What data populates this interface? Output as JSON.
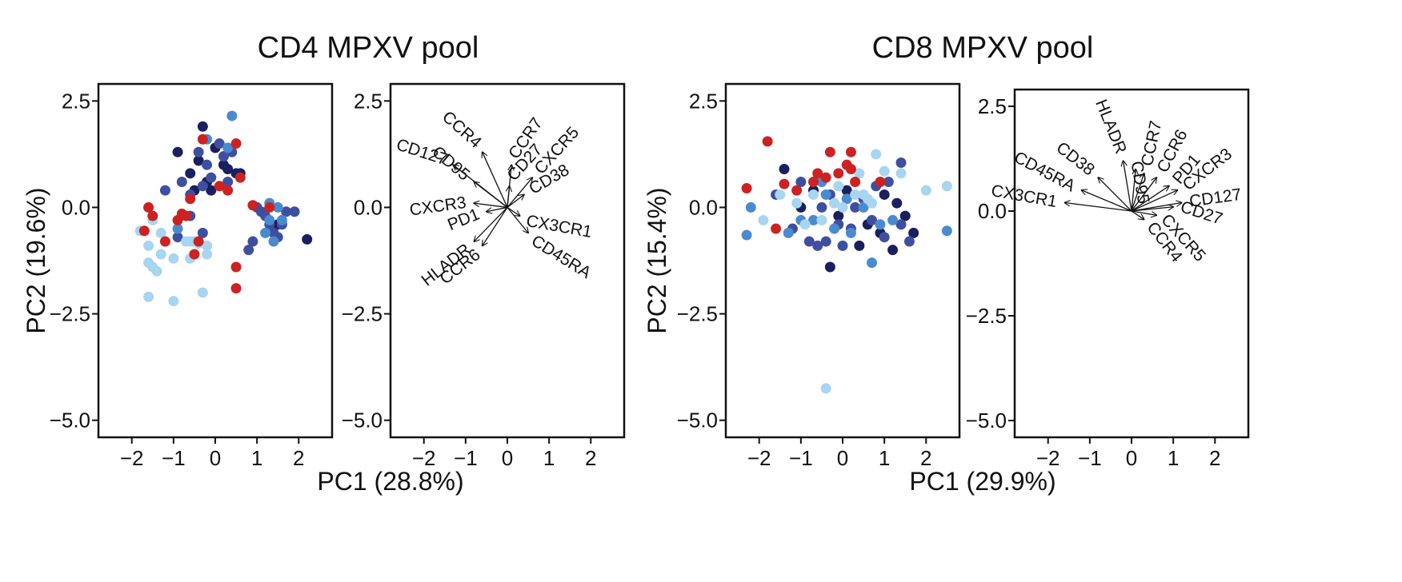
{
  "chart_data": [
    {
      "type": "scatter",
      "title": "CD4 MPXV pool",
      "xlabel": "PC1 (28.8%)",
      "ylabel": "PC2 (19.6%)",
      "xlim": [
        -2.8,
        2.8
      ],
      "ylim": [
        -5.4,
        2.9
      ],
      "xticks": [
        -2,
        -1,
        0,
        1,
        2
      ],
      "yticks": [
        2.5,
        0.0,
        -2.5,
        -5.0
      ],
      "grid": false,
      "series": [
        {
          "color": "#1a1f5e",
          "points": [
            [
              -0.9,
              1.3
            ],
            [
              -0.6,
              0.8
            ],
            [
              -0.3,
              1.9
            ],
            [
              -0.2,
              0.6
            ],
            [
              0.0,
              1.4
            ],
            [
              0.2,
              1.0
            ],
            [
              0.5,
              0.8
            ],
            [
              0.6,
              0.8
            ],
            [
              -0.5,
              0.4
            ],
            [
              -0.1,
              0.4
            ],
            [
              1.5,
              -0.4
            ],
            [
              2.2,
              -0.75
            ],
            [
              -0.4,
              1.1
            ],
            [
              0.3,
              0.9
            ]
          ]
        },
        {
          "color": "#3f4fa0",
          "points": [
            [
              -1.2,
              0.4
            ],
            [
              -0.8,
              0.6
            ],
            [
              -0.6,
              0.3
            ],
            [
              -0.4,
              1.3
            ],
            [
              -0.3,
              0.5
            ],
            [
              -0.2,
              1.0
            ],
            [
              -0.1,
              0.7
            ],
            [
              0.1,
              1.5
            ],
            [
              0.3,
              0.6
            ],
            [
              0.4,
              1.3
            ],
            [
              1.0,
              0.0
            ],
            [
              1.2,
              -0.2
            ],
            [
              1.3,
              -0.4
            ],
            [
              1.4,
              -0.6
            ],
            [
              1.6,
              -0.4
            ],
            [
              1.7,
              -0.1
            ],
            [
              1.9,
              -0.1
            ],
            [
              0.8,
              -1.0
            ],
            [
              -0.9,
              -0.7
            ],
            [
              -0.6,
              -0.2
            ],
            [
              1.1,
              -0.1
            ],
            [
              1.5,
              -0.7
            ],
            [
              -0.3,
              -0.6
            ],
            [
              0.9,
              -0.8
            ],
            [
              0.2,
              1.2
            ]
          ]
        },
        {
          "color": "#4a8bd0",
          "points": [
            [
              0.4,
              2.15
            ],
            [
              1.3,
              -0.3
            ],
            [
              1.5,
              0.0
            ],
            [
              1.2,
              -0.6
            ],
            [
              1.4,
              -0.8
            ],
            [
              -0.9,
              -0.5
            ],
            [
              -0.2,
              1.6
            ],
            [
              0.3,
              1.4
            ],
            [
              1.6,
              -0.3
            ],
            [
              1.3,
              0.1
            ]
          ]
        },
        {
          "color": "#a8d5f0",
          "points": [
            [
              -1.8,
              -0.55
            ],
            [
              -1.6,
              -0.9
            ],
            [
              -1.5,
              -1.4
            ],
            [
              -1.6,
              -1.3
            ],
            [
              -1.5,
              -0.3
            ],
            [
              -1.3,
              -0.6
            ],
            [
              -1.0,
              -1.2
            ],
            [
              -0.7,
              -0.8
            ],
            [
              -0.6,
              -0.8
            ],
            [
              -0.5,
              -0.8
            ],
            [
              -0.4,
              -0.85
            ],
            [
              -0.2,
              -1.1
            ],
            [
              -0.2,
              -0.9
            ],
            [
              -1.0,
              -2.2
            ],
            [
              -1.6,
              -2.1
            ],
            [
              -0.3,
              -2.0
            ],
            [
              -1.4,
              -1.5
            ],
            [
              -0.6,
              -1.2
            ],
            [
              -1.3,
              -1.1
            ]
          ]
        },
        {
          "color": "#cc2222",
          "points": [
            [
              -1.6,
              0.0
            ],
            [
              -1.5,
              -0.2
            ],
            [
              -1.7,
              -0.55
            ],
            [
              -1.2,
              -0.8
            ],
            [
              -0.9,
              -0.3
            ],
            [
              -0.8,
              -0.15
            ],
            [
              -0.7,
              -0.2
            ],
            [
              -0.6,
              0.2
            ],
            [
              -0.3,
              1.6
            ],
            [
              0.1,
              0.5
            ],
            [
              0.3,
              0.4
            ],
            [
              0.5,
              1.5
            ],
            [
              0.9,
              0.05
            ],
            [
              1.3,
              0.0
            ],
            [
              0.5,
              -1.4
            ],
            [
              0.5,
              -1.9
            ],
            [
              -0.4,
              -0.8
            ],
            [
              0.6,
              0.7
            ],
            [
              -0.5,
              -1.1
            ]
          ]
        }
      ]
    },
    {
      "type": "biplot",
      "xlim": [
        -2.8,
        2.8
      ],
      "ylim": [
        -5.4,
        2.9
      ],
      "xticks": [
        -2,
        -1,
        0,
        1,
        2
      ],
      "yticks": [
        2.5,
        0.0,
        -2.5,
        -5.0
      ],
      "grid": false,
      "vectors": [
        {
          "label": "CD127",
          "x": -1.3,
          "y": 1.0,
          "angle": 18
        },
        {
          "label": "CCR4",
          "x": -0.6,
          "y": 1.3,
          "angle": 42
        },
        {
          "label": "CD95",
          "x": -0.8,
          "y": 0.6,
          "angle": 40
        },
        {
          "label": "CCR7",
          "x": 0.1,
          "y": 1.0,
          "angle": -55
        },
        {
          "label": "CD27",
          "x": 0.05,
          "y": 0.5,
          "angle": -48
        },
        {
          "label": "CXCR5",
          "x": 0.6,
          "y": 0.7,
          "angle": -48
        },
        {
          "label": "CD38",
          "x": 0.4,
          "y": 0.3,
          "angle": -30
        },
        {
          "label": "CXCR3",
          "x": -0.8,
          "y": 0.1,
          "angle": -8
        },
        {
          "label": "PD1",
          "x": -0.5,
          "y": -0.1,
          "angle": -22
        },
        {
          "label": "CX3CR1",
          "x": 0.3,
          "y": -0.2,
          "angle": 10
        },
        {
          "label": "CD45RA",
          "x": 0.5,
          "y": -0.6,
          "angle": 32
        },
        {
          "label": "HLADR",
          "x": -0.8,
          "y": -0.8,
          "angle": -38
        },
        {
          "label": "CCR6",
          "x": -0.6,
          "y": -0.9,
          "angle": -38
        }
      ]
    },
    {
      "type": "scatter",
      "title": "CD8 MPXV pool",
      "xlabel": "PC1 (29.9%)",
      "ylabel": "PC2 (15.4%)",
      "xlim": [
        -2.8,
        2.8
      ],
      "ylim": [
        -5.4,
        2.9
      ],
      "xticks": [
        -2,
        -1,
        0,
        1,
        2
      ],
      "yticks": [
        2.5,
        0.0,
        -2.5,
        -5.0
      ],
      "grid": false,
      "series": [
        {
          "color": "#1a1f5e",
          "points": [
            [
              -1.4,
              0.9
            ],
            [
              -0.7,
              0.4
            ],
            [
              -0.3,
              -1.4
            ],
            [
              0.1,
              0.4
            ],
            [
              0.6,
              -0.4
            ],
            [
              0.9,
              -0.6
            ],
            [
              1.0,
              0.3
            ],
            [
              1.3,
              0.1
            ],
            [
              1.5,
              -0.2
            ],
            [
              -0.1,
              -0.2
            ],
            [
              0.4,
              -0.9
            ],
            [
              1.2,
              -1.0
            ],
            [
              1.7,
              -0.6
            ],
            [
              -1.0,
              0.0
            ]
          ]
        },
        {
          "color": "#3f4fa0",
          "points": [
            [
              -1.6,
              0.3
            ],
            [
              -1.2,
              -0.5
            ],
            [
              -0.8,
              -0.8
            ],
            [
              -0.6,
              -0.9
            ],
            [
              -0.5,
              0.0
            ],
            [
              -0.3,
              0.3
            ],
            [
              -0.1,
              -0.4
            ],
            [
              0.2,
              -0.5
            ],
            [
              0.3,
              0.0
            ],
            [
              0.5,
              0.2
            ],
            [
              0.7,
              -0.3
            ],
            [
              0.8,
              0.5
            ],
            [
              1.1,
              0.6
            ],
            [
              1.4,
              -0.4
            ],
            [
              1.6,
              -0.8
            ],
            [
              -1.0,
              0.6
            ],
            [
              0.0,
              -0.9
            ],
            [
              1.4,
              1.05
            ],
            [
              -0.4,
              -0.8
            ],
            [
              1.0,
              -0.7
            ]
          ]
        },
        {
          "color": "#4a8bd0",
          "points": [
            [
              -2.3,
              -0.65
            ],
            [
              -2.2,
              0.0
            ],
            [
              -1.3,
              -0.6
            ],
            [
              -1.0,
              -0.3
            ],
            [
              -0.7,
              -0.3
            ],
            [
              -0.4,
              0.3
            ],
            [
              -0.2,
              -0.5
            ],
            [
              0.2,
              -0.6
            ],
            [
              0.5,
              0.0
            ],
            [
              0.9,
              -0.4
            ],
            [
              1.2,
              -0.3
            ],
            [
              0.7,
              -1.3
            ],
            [
              2.5,
              -0.55
            ],
            [
              -0.5,
              0.6
            ],
            [
              0.1,
              0.2
            ]
          ]
        },
        {
          "color": "#a8d5f0",
          "points": [
            [
              -1.5,
              0.3
            ],
            [
              -1.1,
              0.1
            ],
            [
              -0.9,
              -0.4
            ],
            [
              -0.7,
              0.3
            ],
            [
              -0.5,
              -0.3
            ],
            [
              -0.1,
              0.5
            ],
            [
              0.0,
              0.0
            ],
            [
              0.3,
              0.3
            ],
            [
              0.4,
              0.8
            ],
            [
              0.6,
              0.2
            ],
            [
              0.7,
              0.1
            ],
            [
              0.8,
              1.25
            ],
            [
              1.0,
              0.85
            ],
            [
              1.4,
              0.8
            ],
            [
              2.0,
              0.4
            ],
            [
              2.5,
              0.5
            ],
            [
              -1.9,
              -0.3
            ],
            [
              -0.4,
              -4.25
            ],
            [
              -0.2,
              0.1
            ],
            [
              0.5,
              0.3
            ]
          ]
        },
        {
          "color": "#cc2222",
          "points": [
            [
              -1.8,
              1.55
            ],
            [
              -2.3,
              0.45
            ],
            [
              -1.4,
              0.55
            ],
            [
              -1.1,
              0.4
            ],
            [
              -0.7,
              0.6
            ],
            [
              -0.6,
              0.8
            ],
            [
              -0.4,
              0.7
            ],
            [
              -0.3,
              1.3
            ],
            [
              -0.1,
              0.8
            ],
            [
              0.1,
              1.0
            ],
            [
              0.2,
              0.9
            ],
            [
              0.3,
              0.6
            ],
            [
              -1.6,
              -0.5
            ],
            [
              0.9,
              0.6
            ],
            [
              0.2,
              1.3
            ]
          ]
        }
      ]
    },
    {
      "type": "biplot",
      "xlim": [
        -2.8,
        2.8
      ],
      "ylim": [
        -5.4,
        2.9
      ],
      "xticks": [
        -2,
        -1,
        0,
        1,
        2
      ],
      "yticks": [
        2.5,
        0.0,
        -2.5,
        -5.0
      ],
      "grid": false,
      "vectors": [
        {
          "label": "HLADR",
          "x": -0.2,
          "y": 1.2,
          "angle": 68
        },
        {
          "label": "CD95",
          "x": 0.1,
          "y": 1.0,
          "angle": 80
        },
        {
          "label": "CCR7",
          "x": 0.3,
          "y": 0.9,
          "angle": -78
        },
        {
          "label": "CCR6",
          "x": 0.6,
          "y": 0.8,
          "angle": -62
        },
        {
          "label": "PD1",
          "x": 0.9,
          "y": 0.6,
          "angle": -50
        },
        {
          "label": "CXCR3",
          "x": 1.1,
          "y": 0.5,
          "angle": -38
        },
        {
          "label": "CD38",
          "x": -0.8,
          "y": 0.8,
          "angle": 38
        },
        {
          "label": "CD45RA",
          "x": -1.2,
          "y": 0.5,
          "angle": 28
        },
        {
          "label": "CX3CR1",
          "x": -1.6,
          "y": 0.2,
          "angle": 10
        },
        {
          "label": "CD127",
          "x": 1.2,
          "y": 0.2,
          "angle": -8
        },
        {
          "label": "CD27",
          "x": 1.0,
          "y": 0.1,
          "angle": 18
        },
        {
          "label": "CXCR5",
          "x": 0.6,
          "y": -0.1,
          "angle": 48
        },
        {
          "label": "CCR4",
          "x": 0.3,
          "y": -0.2,
          "angle": 52
        }
      ]
    }
  ]
}
